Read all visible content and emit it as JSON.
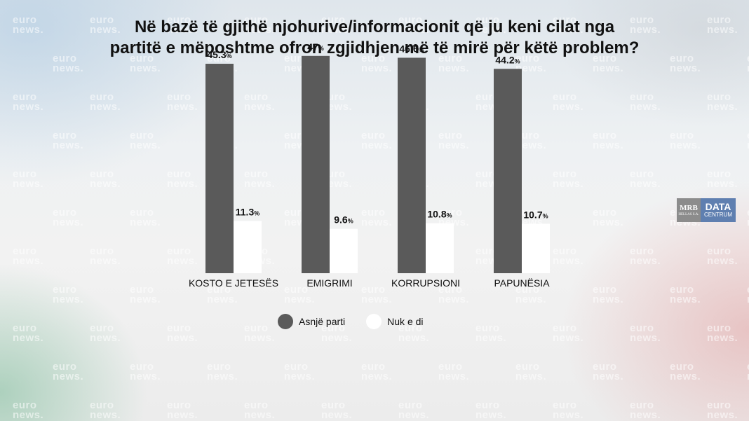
{
  "title_lines": [
    "Në bazë të gjithë njohurive/informacionit që ju keni cilat nga",
    "partitë e mëposhtme ofron zgjidhjen më të mirë për këtë problem?"
  ],
  "watermark": {
    "line1": "euro",
    "line2": "news."
  },
  "colors": {
    "series1": "#5a5a5a",
    "series2": "#ffffff"
  },
  "legend": [
    {
      "label": "Asnjë parti",
      "color": "#5a5a5a"
    },
    {
      "label": "Nuk e di",
      "color": "#ffffff"
    }
  ],
  "logo": {
    "mrb": "MRB",
    "mrb_sub": "HELLAS S.A.",
    "data": "DATA",
    "centrum": "CENTRUM"
  },
  "chart_data": {
    "type": "bar",
    "categories": [
      "KOSTO E JETESËS",
      "EMIGRIMI",
      "KORRUPSIONI",
      "PAPUNËSIA"
    ],
    "series": [
      {
        "name": "Asnjë parti",
        "values": [
          45.3,
          47,
          46.6,
          44.2
        ],
        "labels": [
          "45.3",
          "47",
          "46.6",
          "44.2"
        ]
      },
      {
        "name": "Nuk e di",
        "values": [
          11.3,
          9.6,
          10.8,
          10.7
        ],
        "labels": [
          "11.3",
          "9.6",
          "10.8",
          "10.7"
        ]
      }
    ],
    "unit": "%",
    "ylim": [
      0,
      50
    ],
    "grid": false
  }
}
